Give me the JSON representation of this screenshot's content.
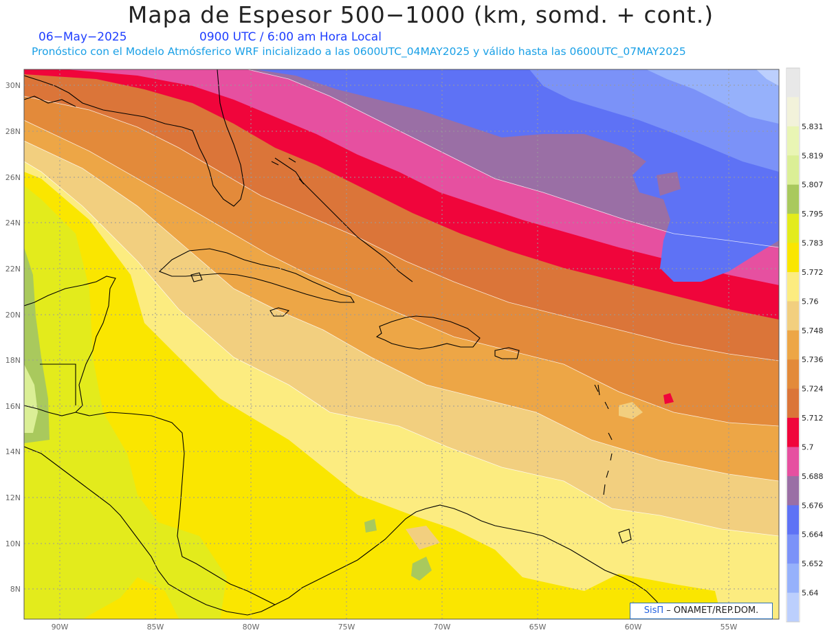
{
  "header": {
    "title": "Mapa de Espesor 500−1000 (km, somd. + cont.)",
    "date": "06−May−2025",
    "time": "0900 UTC / 6:00 am Hora Local",
    "subtitle": "Pronóstico con el Modelo Atmósferico WRF inicializado a las 0600UTC_04MAY2025 y válido hasta las  0600UTC_07MAY2025"
  },
  "axes": {
    "lat_labels": [
      "30N",
      "28N",
      "26N",
      "24N",
      "22N",
      "20N",
      "18N",
      "16N",
      "14N",
      "12N",
      "10N",
      "8N"
    ],
    "lon_labels": [
      "90W",
      "85W",
      "80W",
      "75W",
      "70W",
      "65W",
      "60W",
      "55W"
    ]
  },
  "legend": {
    "items": [
      {
        "value": "",
        "color": "#e8e8e8"
      },
      {
        "value": "5.831",
        "color": "#f2f2da"
      },
      {
        "value": "5.819",
        "color": "#e9f5b4"
      },
      {
        "value": "5.807",
        "color": "#dbef96"
      },
      {
        "value": "5.795",
        "color": "#a9c95d"
      },
      {
        "value": "5.783",
        "color": "#e3eb1c"
      },
      {
        "value": "5.772",
        "color": "#fae600"
      },
      {
        "value": "5.76",
        "color": "#fcec80"
      },
      {
        "value": "5.748",
        "color": "#f2cf7f"
      },
      {
        "value": "5.736",
        "color": "#eda646"
      },
      {
        "value": "5.724",
        "color": "#e38a3a"
      },
      {
        "value": "5.712",
        "color": "#db7539"
      },
      {
        "value": "5.7",
        "color": "#f0053b"
      },
      {
        "value": "5.688",
        "color": "#e650a0"
      },
      {
        "value": "5.676",
        "color": "#9a6fa5"
      },
      {
        "value": "5.664",
        "color": "#5e72f5"
      },
      {
        "value": "5.652",
        "color": "#7b92f8"
      },
      {
        "value": "5.64",
        "color": "#96b1fb"
      },
      {
        "value": "",
        "color": "#bccffd"
      }
    ]
  },
  "credit": {
    "brand": "SisΠ",
    "text": "– ONAMET/REP.DOM."
  }
}
